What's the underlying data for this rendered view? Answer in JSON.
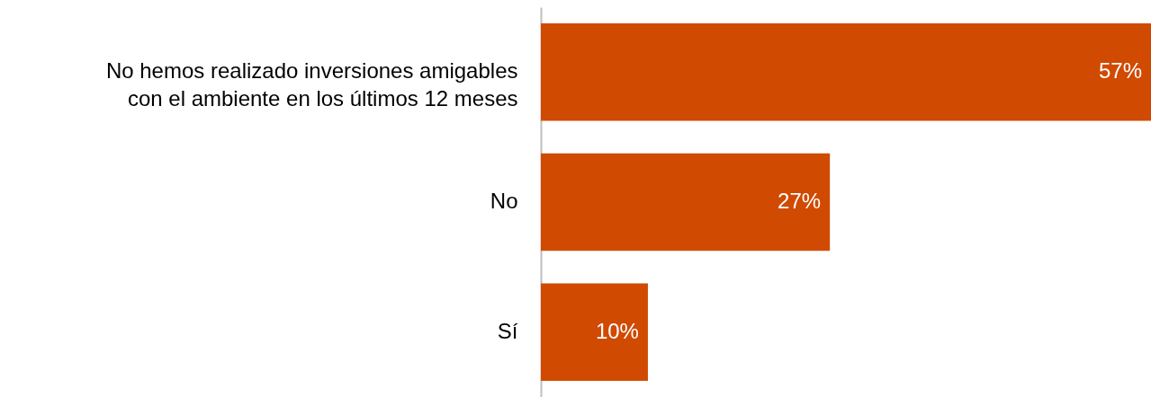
{
  "chart_data": {
    "type": "bar",
    "orientation": "horizontal",
    "categories": [
      "No hemos realizado inversiones amigables con el ambiente en los últimos 12 meses",
      "No",
      "Sí"
    ],
    "values": [
      57,
      27,
      10
    ],
    "value_labels": [
      "57%",
      "27%",
      "10%"
    ],
    "color": "#d04a02",
    "tick_labels": "y"
  }
}
